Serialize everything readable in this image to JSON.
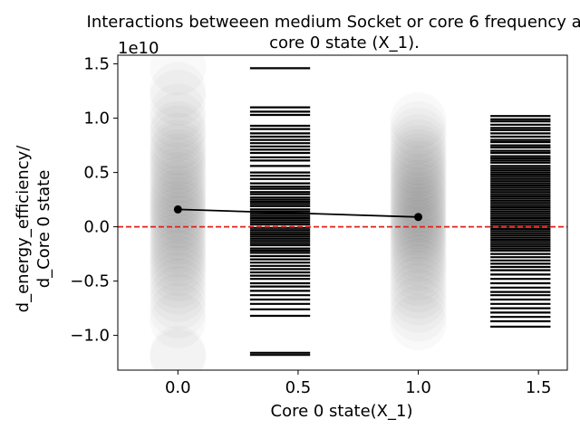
{
  "chart_data": {
    "type": "scatter",
    "title_lines": [
      "Interactions betweeen medium Socket or core 6 frequency and",
      "core 0 state (X_1)."
    ],
    "xlabel": "Core 0 state(X_1)",
    "ylabel_lines": [
      "d_energy_efficiency/",
      "d_Core 0 state"
    ],
    "y_offset_label": "1e10",
    "y_multiplier": 10000000000.0,
    "xlim": [
      -0.25,
      1.62
    ],
    "ylim": [
      -1.32,
      1.58
    ],
    "x_ticks": [
      0.0,
      0.5,
      1.0,
      1.5
    ],
    "x_tick_labels": [
      "0.0",
      "0.5",
      "1.0",
      "1.5"
    ],
    "y_ticks": [
      -1.0,
      -0.5,
      0.0,
      0.5,
      1.0,
      1.5
    ],
    "y_tick_labels": [
      "−1.0",
      "−0.5",
      "0.0",
      "0.5",
      "1.0",
      "1.5"
    ],
    "grid": false,
    "reference_line": {
      "y": 0.0,
      "color": "#e0201a",
      "style": "dashed"
    },
    "mean_line": {
      "x": [
        0.0,
        1.0
      ],
      "y": [
        0.16,
        0.09
      ],
      "color": "#000000"
    },
    "groups": [
      {
        "x": 0.0,
        "points_y": [
          1.47,
          1.26,
          1.19,
          1.06,
          0.98,
          0.9,
          0.86,
          0.79,
          0.73,
          0.69,
          0.64,
          0.6,
          0.56,
          0.52,
          0.47,
          0.43,
          0.39,
          0.35,
          0.31,
          0.27,
          0.24,
          0.2,
          0.17,
          0.13,
          0.1,
          0.06,
          0.03,
          -0.01,
          -0.05,
          -0.09,
          -0.13,
          -0.17,
          -0.21,
          -0.25,
          -0.29,
          -0.34,
          -0.38,
          -0.43,
          -0.49,
          -0.55,
          -0.62,
          -0.69,
          -0.77,
          -0.86,
          -1.17,
          -1.2
        ],
        "rug_x": [
          0.3,
          0.55
        ],
        "rug_y": [
          1.46,
          1.1,
          1.06,
          1.03,
          0.93,
          0.9,
          0.86,
          0.83,
          0.8,
          0.77,
          0.74,
          0.71,
          0.68,
          0.64,
          0.61,
          0.56,
          0.5,
          0.47,
          0.44,
          0.4,
          0.37,
          0.35,
          0.32,
          0.3,
          0.27,
          0.25,
          0.23,
          0.21,
          0.19,
          0.16,
          0.14,
          0.12,
          0.1,
          0.08,
          0.06,
          0.04,
          0.02,
          -0.01,
          -0.03,
          -0.05,
          -0.07,
          -0.09,
          -0.11,
          -0.13,
          -0.15,
          -0.17,
          -0.2,
          -0.22,
          -0.24,
          -0.27,
          -0.3,
          -0.33,
          -0.36,
          -0.39,
          -0.42,
          -0.45,
          -0.48,
          -0.52,
          -0.55,
          -0.59,
          -0.63,
          -0.67,
          -0.71,
          -0.76,
          -0.82,
          -1.16,
          -1.18
        ]
      },
      {
        "x": 1.0,
        "points_y": [
          0.98,
          0.9,
          0.84,
          0.78,
          0.73,
          0.68,
          0.64,
          0.6,
          0.56,
          0.53,
          0.49,
          0.46,
          0.42,
          0.39,
          0.36,
          0.33,
          0.29,
          0.26,
          0.23,
          0.2,
          0.17,
          0.14,
          0.11,
          0.08,
          0.05,
          0.02,
          -0.01,
          -0.04,
          -0.07,
          -0.1,
          -0.14,
          -0.17,
          -0.21,
          -0.25,
          -0.29,
          -0.33,
          -0.37,
          -0.42,
          -0.47,
          -0.53,
          -0.59,
          -0.65,
          -0.72,
          -0.8,
          -0.88
        ],
        "rug_x": [
          1.3,
          1.55
        ],
        "rug_y": [
          1.02,
          0.99,
          0.97,
          0.94,
          0.91,
          0.89,
          0.86,
          0.83,
          0.8,
          0.78,
          0.75,
          0.73,
          0.7,
          0.68,
          0.65,
          0.63,
          0.61,
          0.59,
          0.56,
          0.54,
          0.52,
          0.5,
          0.48,
          0.46,
          0.44,
          0.42,
          0.4,
          0.38,
          0.36,
          0.34,
          0.32,
          0.3,
          0.28,
          0.26,
          0.24,
          0.22,
          0.2,
          0.18,
          0.16,
          0.14,
          0.12,
          0.1,
          0.08,
          0.06,
          0.04,
          0.02,
          0.0,
          -0.02,
          -0.04,
          -0.06,
          -0.08,
          -0.1,
          -0.12,
          -0.14,
          -0.16,
          -0.18,
          -0.2,
          -0.22,
          -0.25,
          -0.28,
          -0.31,
          -0.34,
          -0.37,
          -0.4,
          -0.44,
          -0.48,
          -0.52,
          -0.56,
          -0.6,
          -0.63,
          -0.67,
          -0.71,
          -0.75,
          -0.79,
          -0.83,
          -0.87,
          -0.92
        ]
      }
    ]
  }
}
